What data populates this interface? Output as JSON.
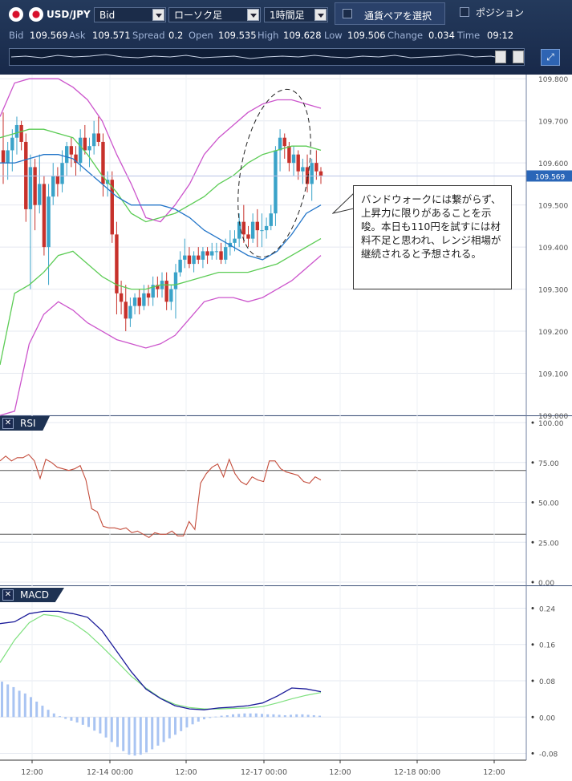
{
  "toolbar": {
    "symbol": "USD/JPY",
    "price_type": "Bid",
    "chart_type": "ローソク足",
    "timeframe": "1時間足",
    "pair_select": "通貨ペアを選択",
    "position": "ポジション"
  },
  "quote": {
    "bid_label": "Bid",
    "bid": "109.569",
    "ask_label": "Ask",
    "ask": "109.571",
    "spread_label": "Spread",
    "spread": "0.2",
    "open_label": "Open",
    "open": "109.535",
    "high_label": "High",
    "high": "109.628",
    "low_label": "Low",
    "low": "109.506",
    "change_label": "Change",
    "change": "0.034",
    "time_label": "Time",
    "time": "09:12"
  },
  "annotation": {
    "text": "バンドウォークには繋がらず、上昇力に限りがあることを示唆。本日も110円を試すには材料不足と思われ、レンジ相場が継続されると予想される。"
  },
  "colors": {
    "toolbar": "#1e3253",
    "up": "#3aa3c9",
    "down": "#c7312b",
    "ma": "#2476c9",
    "band1": "#5ccc55",
    "band2": "#cc55cc",
    "rsi": "#c44d3c",
    "macd": "#1a1a99",
    "signal": "#7ee07e",
    "hist": "#a9c4f2"
  },
  "chart_data": [
    {
      "type": "candlestick",
      "yticks": [
        "109.800",
        "109.700",
        "109.600",
        "109.500",
        "109.400",
        "109.300",
        "109.200",
        "109.100",
        "109.000"
      ],
      "ylim": [
        109.0,
        109.81
      ],
      "current_price_label": "109.569",
      "candles": [
        {
          "o": 109.63,
          "h": 109.72,
          "l": 109.55,
          "c": 109.6
        },
        {
          "o": 109.6,
          "h": 109.65,
          "l": 109.56,
          "c": 109.63
        },
        {
          "o": 109.63,
          "h": 109.68,
          "l": 109.58,
          "c": 109.66
        },
        {
          "o": 109.66,
          "h": 109.71,
          "l": 109.62,
          "c": 109.69
        },
        {
          "o": 109.69,
          "h": 109.7,
          "l": 109.63,
          "c": 109.65
        },
        {
          "o": 109.65,
          "h": 109.67,
          "l": 109.46,
          "c": 109.49
        },
        {
          "o": 109.49,
          "h": 109.62,
          "l": 109.3,
          "c": 109.59
        },
        {
          "o": 109.59,
          "h": 109.61,
          "l": 109.44,
          "c": 109.5
        },
        {
          "o": 109.5,
          "h": 109.62,
          "l": 109.48,
          "c": 109.55
        },
        {
          "o": 109.55,
          "h": 109.57,
          "l": 109.38,
          "c": 109.4
        },
        {
          "o": 109.4,
          "h": 109.55,
          "l": 109.31,
          "c": 109.52
        },
        {
          "o": 109.52,
          "h": 109.6,
          "l": 109.5,
          "c": 109.57
        },
        {
          "o": 109.57,
          "h": 109.59,
          "l": 109.52,
          "c": 109.55
        },
        {
          "o": 109.55,
          "h": 109.63,
          "l": 109.53,
          "c": 109.6
        },
        {
          "o": 109.6,
          "h": 109.65,
          "l": 109.57,
          "c": 109.64
        },
        {
          "o": 109.64,
          "h": 109.66,
          "l": 109.59,
          "c": 109.62
        },
        {
          "o": 109.62,
          "h": 109.64,
          "l": 109.57,
          "c": 109.6
        },
        {
          "o": 109.6,
          "h": 109.68,
          "l": 109.58,
          "c": 109.66
        },
        {
          "o": 109.66,
          "h": 109.69,
          "l": 109.62,
          "c": 109.63
        },
        {
          "o": 109.63,
          "h": 109.66,
          "l": 109.59,
          "c": 109.64
        },
        {
          "o": 109.64,
          "h": 109.7,
          "l": 109.62,
          "c": 109.67
        },
        {
          "o": 109.67,
          "h": 109.71,
          "l": 109.64,
          "c": 109.65
        },
        {
          "o": 109.65,
          "h": 109.67,
          "l": 109.52,
          "c": 109.55
        },
        {
          "o": 109.55,
          "h": 109.58,
          "l": 109.52,
          "c": 109.56
        },
        {
          "o": 109.56,
          "h": 109.58,
          "l": 109.41,
          "c": 109.43
        },
        {
          "o": 109.43,
          "h": 109.46,
          "l": 109.24,
          "c": 109.29
        },
        {
          "o": 109.29,
          "h": 109.32,
          "l": 109.24,
          "c": 109.27
        },
        {
          "o": 109.27,
          "h": 109.31,
          "l": 109.2,
          "c": 109.23
        },
        {
          "o": 109.23,
          "h": 109.28,
          "l": 109.21,
          "c": 109.26
        },
        {
          "o": 109.26,
          "h": 109.29,
          "l": 109.24,
          "c": 109.28
        },
        {
          "o": 109.28,
          "h": 109.3,
          "l": 109.24,
          "c": 109.26
        },
        {
          "o": 109.26,
          "h": 109.31,
          "l": 109.25,
          "c": 109.29
        },
        {
          "o": 109.29,
          "h": 109.31,
          "l": 109.26,
          "c": 109.28
        },
        {
          "o": 109.28,
          "h": 109.33,
          "l": 109.26,
          "c": 109.31
        },
        {
          "o": 109.31,
          "h": 109.33,
          "l": 109.28,
          "c": 109.3
        },
        {
          "o": 109.3,
          "h": 109.34,
          "l": 109.28,
          "c": 109.32
        },
        {
          "o": 109.32,
          "h": 109.34,
          "l": 109.25,
          "c": 109.27
        },
        {
          "o": 109.27,
          "h": 109.31,
          "l": 109.25,
          "c": 109.3
        },
        {
          "o": 109.3,
          "h": 109.36,
          "l": 109.23,
          "c": 109.34
        },
        {
          "o": 109.34,
          "h": 109.39,
          "l": 109.33,
          "c": 109.37
        },
        {
          "o": 109.37,
          "h": 109.42,
          "l": 109.35,
          "c": 109.38
        },
        {
          "o": 109.38,
          "h": 109.4,
          "l": 109.35,
          "c": 109.36
        },
        {
          "o": 109.36,
          "h": 109.39,
          "l": 109.34,
          "c": 109.38
        },
        {
          "o": 109.38,
          "h": 109.4,
          "l": 109.36,
          "c": 109.37
        },
        {
          "o": 109.37,
          "h": 109.4,
          "l": 109.35,
          "c": 109.39
        },
        {
          "o": 109.39,
          "h": 109.4,
          "l": 109.36,
          "c": 109.38
        },
        {
          "o": 109.38,
          "h": 109.41,
          "l": 109.37,
          "c": 109.39
        },
        {
          "o": 109.39,
          "h": 109.41,
          "l": 109.37,
          "c": 109.39
        },
        {
          "o": 109.39,
          "h": 109.41,
          "l": 109.36,
          "c": 109.37
        },
        {
          "o": 109.37,
          "h": 109.42,
          "l": 109.36,
          "c": 109.4
        },
        {
          "o": 109.4,
          "h": 109.44,
          "l": 109.38,
          "c": 109.41
        },
        {
          "o": 109.41,
          "h": 109.44,
          "l": 109.39,
          "c": 109.42
        },
        {
          "o": 109.42,
          "h": 109.48,
          "l": 109.4,
          "c": 109.46
        },
        {
          "o": 109.46,
          "h": 109.5,
          "l": 109.41,
          "c": 109.43
        },
        {
          "o": 109.43,
          "h": 109.45,
          "l": 109.4,
          "c": 109.42
        },
        {
          "o": 109.42,
          "h": 109.48,
          "l": 109.41,
          "c": 109.46
        },
        {
          "o": 109.46,
          "h": 109.49,
          "l": 109.4,
          "c": 109.44
        },
        {
          "o": 109.44,
          "h": 109.48,
          "l": 109.4,
          "c": 109.44
        },
        {
          "o": 109.44,
          "h": 109.47,
          "l": 109.42,
          "c": 109.45
        },
        {
          "o": 109.45,
          "h": 109.5,
          "l": 109.44,
          "c": 109.48
        },
        {
          "o": 109.48,
          "h": 109.64,
          "l": 109.45,
          "c": 109.63
        },
        {
          "o": 109.63,
          "h": 109.68,
          "l": 109.58,
          "c": 109.66
        },
        {
          "o": 109.66,
          "h": 109.67,
          "l": 109.61,
          "c": 109.64
        },
        {
          "o": 109.64,
          "h": 109.65,
          "l": 109.58,
          "c": 109.6
        },
        {
          "o": 109.6,
          "h": 109.64,
          "l": 109.57,
          "c": 109.62
        },
        {
          "o": 109.62,
          "h": 109.63,
          "l": 109.56,
          "c": 109.58
        },
        {
          "o": 109.58,
          "h": 109.61,
          "l": 109.55,
          "c": 109.59
        },
        {
          "o": 109.59,
          "h": 109.62,
          "l": 109.53,
          "c": 109.55
        },
        {
          "o": 109.55,
          "h": 109.61,
          "l": 109.51,
          "c": 109.6
        },
        {
          "o": 109.6,
          "h": 109.63,
          "l": 109.56,
          "c": 109.58
        },
        {
          "o": 109.58,
          "h": 109.59,
          "l": 109.55,
          "c": 109.57
        }
      ],
      "ma": [
        109.6,
        109.6,
        109.61,
        109.62,
        109.62,
        109.61,
        109.58,
        109.55,
        109.52,
        109.5,
        109.5,
        109.5,
        109.49,
        109.47,
        109.44,
        109.42,
        109.4,
        109.38,
        109.37,
        109.39,
        109.43,
        109.48,
        109.5
      ],
      "upper1": [
        109.66,
        109.67,
        109.68,
        109.68,
        109.67,
        109.66,
        109.62,
        109.57,
        109.53,
        109.48,
        109.46,
        109.47,
        109.48,
        109.5,
        109.52,
        109.55,
        109.57,
        109.6,
        109.62,
        109.63,
        109.64,
        109.64,
        109.63
      ],
      "lower1": [
        109.12,
        109.29,
        109.31,
        109.34,
        109.38,
        109.39,
        109.36,
        109.33,
        109.31,
        109.3,
        109.3,
        109.31,
        109.31,
        109.32,
        109.33,
        109.34,
        109.34,
        109.34,
        109.35,
        109.36,
        109.38,
        109.4,
        109.42
      ],
      "upper2": [
        109.71,
        109.79,
        109.8,
        109.8,
        109.8,
        109.78,
        109.75,
        109.7,
        109.62,
        109.55,
        109.47,
        109.46,
        109.5,
        109.55,
        109.62,
        109.66,
        109.69,
        109.72,
        109.74,
        109.75,
        109.75,
        109.74,
        109.73
      ],
      "lower2": [
        109.0,
        109.01,
        109.17,
        109.24,
        109.27,
        109.25,
        109.22,
        109.2,
        109.18,
        109.17,
        109.16,
        109.17,
        109.19,
        109.23,
        109.27,
        109.28,
        109.28,
        109.27,
        109.28,
        109.3,
        109.32,
        109.35,
        109.38
      ]
    },
    {
      "type": "line",
      "title": "RSI",
      "yticks": [
        "100.00",
        "75.00",
        "50.00",
        "25.00",
        "0.00"
      ],
      "ylim": [
        0,
        100
      ],
      "levels": [
        70,
        30
      ],
      "values": [
        76,
        79,
        76,
        78,
        78,
        80,
        76,
        65,
        77,
        75,
        72,
        71,
        70,
        71,
        73,
        64,
        46,
        44,
        35,
        34,
        34,
        33,
        34,
        31,
        32,
        30,
        28,
        31,
        30,
        30,
        32,
        29,
        29,
        38,
        33,
        62,
        68,
        72,
        74,
        66,
        77,
        68,
        63,
        61,
        66,
        64,
        63,
        76,
        76,
        71,
        69,
        68,
        67,
        63,
        62,
        66,
        64
      ]
    },
    {
      "type": "line",
      "title": "MACD",
      "yticks": [
        "0.24",
        "0.16",
        "0.08",
        "0.00",
        "-0.08"
      ],
      "ylim": [
        -0.095,
        0.285
      ],
      "macd": [
        0.206,
        0.21,
        0.228,
        0.233,
        0.233,
        0.228,
        0.22,
        0.19,
        0.145,
        0.1,
        0.062,
        0.041,
        0.025,
        0.018,
        0.016,
        0.02,
        0.022,
        0.025,
        0.031,
        0.046,
        0.064,
        0.062,
        0.056
      ],
      "signal": [
        0.12,
        0.17,
        0.208,
        0.226,
        0.222,
        0.208,
        0.185,
        0.155,
        0.123,
        0.09,
        0.064,
        0.042,
        0.028,
        0.021,
        0.018,
        0.018,
        0.019,
        0.02,
        0.023,
        0.031,
        0.04,
        0.048,
        0.054
      ],
      "hist": [
        0.078,
        0.072,
        0.066,
        0.058,
        0.052,
        0.044,
        0.034,
        0.025,
        0.016,
        0.008,
        0.002,
        -0.004,
        -0.008,
        -0.012,
        -0.017,
        -0.022,
        -0.03,
        -0.036,
        -0.045,
        -0.055,
        -0.066,
        -0.075,
        -0.083,
        -0.085,
        -0.083,
        -0.078,
        -0.071,
        -0.063,
        -0.055,
        -0.047,
        -0.039,
        -0.031,
        -0.023,
        -0.016,
        -0.01,
        -0.005,
        -0.002,
        0.001,
        0.003,
        0.004,
        0.006,
        0.007,
        0.008,
        0.008,
        0.008,
        0.007,
        0.006,
        0.006,
        0.005,
        0.004,
        0.005,
        0.006,
        0.006,
        0.005,
        0.004,
        0.003
      ],
      "xticks": [
        "12:00",
        "12-14 00:00",
        "12:00",
        "12-17 00:00",
        "12:00",
        "12-18 00:00",
        "12:00"
      ]
    }
  ]
}
